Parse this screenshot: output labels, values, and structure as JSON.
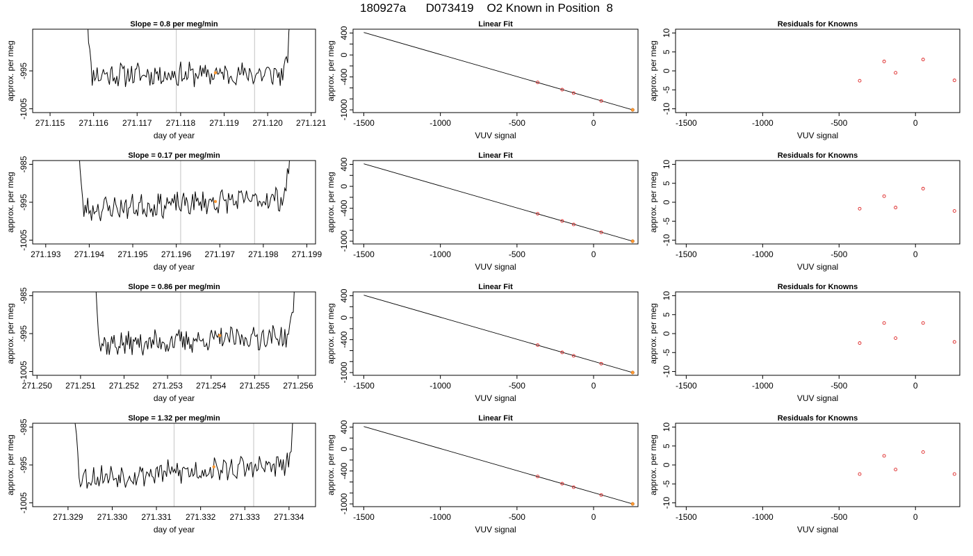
{
  "page": {
    "title_parts": [
      "180927a",
      "D073419",
      "O2 Known in Position  8"
    ]
  },
  "panel_titles": {
    "linear_fit": "Linear Fit",
    "residuals": "Residuals for Knowns",
    "slope_prefix": "Slope = ",
    "slope_suffix": " per meg/min"
  },
  "axis_labels": {
    "time_x": "day of year",
    "vuv_x": "VUV signal",
    "y": "approx. per meg"
  },
  "colors": {
    "trace": "#000000",
    "marker_line": "#cccccc",
    "highlight": "#ff9933",
    "residual_points": "#dd2222",
    "fit_line": "#000000"
  },
  "chart_data": [
    {
      "type": "line",
      "title": "Slope =  0.8  per meg/min",
      "slope": "0.8",
      "xlabel": "day of year",
      "ylabel": "approx. per meg",
      "xlim": [
        271.1146,
        271.1211
      ],
      "ylim": [
        -1006,
        -984
      ],
      "x_ticks": [
        "271.115",
        "271.116",
        "271.117",
        "271.118",
        "271.119",
        "271.120",
        "271.121"
      ],
      "y_ticks": [
        "-1005",
        "-995"
      ],
      "trace_start": 271.1158,
      "trace_end": 271.1206,
      "baseline": -996,
      "trend": 0.2,
      "vertical_markers": [
        271.1179,
        271.1197
      ],
      "highlight_point": {
        "x": 271.1188,
        "y": -995.5
      },
      "seed": 11
    },
    {
      "type": "line",
      "title": "Slope =  0.17  per meg/min",
      "slope": "0.17",
      "xlabel": "day of year",
      "ylabel": "approx. per meg",
      "xlim": [
        271.1927,
        271.1992
      ],
      "ylim": [
        -1006,
        -984
      ],
      "x_ticks": [
        "271.193",
        "271.194",
        "271.195",
        "271.196",
        "271.197",
        "271.198",
        "271.199"
      ],
      "y_ticks": [
        "-1005",
        "-995",
        "-985"
      ],
      "trace_start": 271.1937,
      "trace_end": 271.1987,
      "baseline": -997,
      "trend": 3.2,
      "vertical_markers": [
        271.1961,
        271.1978
      ],
      "highlight_point": {
        "x": 271.1969,
        "y": -994.8
      },
      "seed": 23
    },
    {
      "type": "line",
      "title": "Slope =  0.86  per meg/min",
      "slope": "0.86",
      "xlabel": "day of year",
      "ylabel": "approx. per meg",
      "xlim": [
        271.2499,
        271.2564
      ],
      "ylim": [
        -1006,
        -984
      ],
      "x_ticks": [
        "271.250",
        "271.251",
        "271.252",
        "271.253",
        "271.254",
        "271.255",
        "271.256"
      ],
      "y_ticks": [
        "-1005",
        "-995",
        "-985"
      ],
      "trace_start": 271.2513,
      "trace_end": 271.256,
      "baseline": -998,
      "trend": 2.4,
      "vertical_markers": [
        271.2533,
        271.2551
      ],
      "highlight_point": {
        "x": 271.2542,
        "y": -995.5
      },
      "seed": 37
    },
    {
      "type": "line",
      "title": "Slope =  1.32  per meg/min",
      "slope": "1.32",
      "xlabel": "day of year",
      "ylabel": "approx. per meg",
      "xlim": [
        271.3282,
        271.3346
      ],
      "ylim": [
        -1006,
        -984
      ],
      "x_ticks": [
        "271.329",
        "271.330",
        "271.331",
        "271.332",
        "271.333",
        "271.334"
      ],
      "y_ticks": [
        "-1005",
        "-995",
        "-985"
      ],
      "trace_start": 271.3291,
      "trace_end": 271.3342,
      "baseline": -998.5,
      "trend": 3.5,
      "vertical_markers": [
        271.3314,
        271.3332
      ],
      "highlight_point": {
        "x": 271.3323,
        "y": -995.5
      },
      "seed": 53
    },
    {
      "type": "scatter",
      "title": "Linear Fit",
      "xlabel": "VUV signal",
      "ylabel": "approx. per meg",
      "xlim": [
        -1570,
        290
      ],
      "ylim": [
        -1050,
        470
      ],
      "x_ticks": [
        -1500,
        -1000,
        -500,
        0
      ],
      "y_ticks": [
        -1000,
        -800,
        -600,
        -400,
        -200,
        0,
        200,
        400
      ],
      "y_tick_labels": [
        -1000,
        -400,
        0,
        400
      ],
      "fit_line": {
        "x": [
          -1500,
          255
        ],
        "y": [
          410,
          -1000
        ]
      },
      "points": {
        "x": [
          -365,
          -205,
          -130,
          50
        ],
        "y": [
          -500,
          -632,
          -695,
          -838
        ]
      },
      "highlight_point": {
        "x": 255,
        "y": -1000
      }
    },
    {
      "type": "scatter",
      "title": "Residuals for Knowns",
      "xlabel": "VUV signal",
      "ylabel": "approx. per meg",
      "xlim": [
        -1570,
        290
      ],
      "ylim": [
        -11,
        11
      ],
      "x_ticks": [
        -1500,
        -1000,
        -500,
        0
      ],
      "y_ticks": [
        -10,
        -5,
        0,
        5,
        10
      ],
      "panels": [
        {
          "x": [
            -365,
            -205,
            -130,
            50,
            255
          ],
          "y": [
            -2.6,
            2.5,
            -0.5,
            3.0,
            -2.5
          ]
        },
        {
          "x": [
            -365,
            -205,
            -130,
            50,
            255
          ],
          "y": [
            -1.7,
            1.6,
            -1.4,
            3.6,
            -2.3
          ]
        },
        {
          "x": [
            -365,
            -205,
            -130,
            50,
            255
          ],
          "y": [
            -2.5,
            2.8,
            -1.2,
            2.8,
            -2.2
          ]
        },
        {
          "x": [
            -365,
            -205,
            -130,
            50,
            255
          ],
          "y": [
            -2.4,
            2.4,
            -1.2,
            3.4,
            -2.4
          ]
        }
      ]
    }
  ]
}
